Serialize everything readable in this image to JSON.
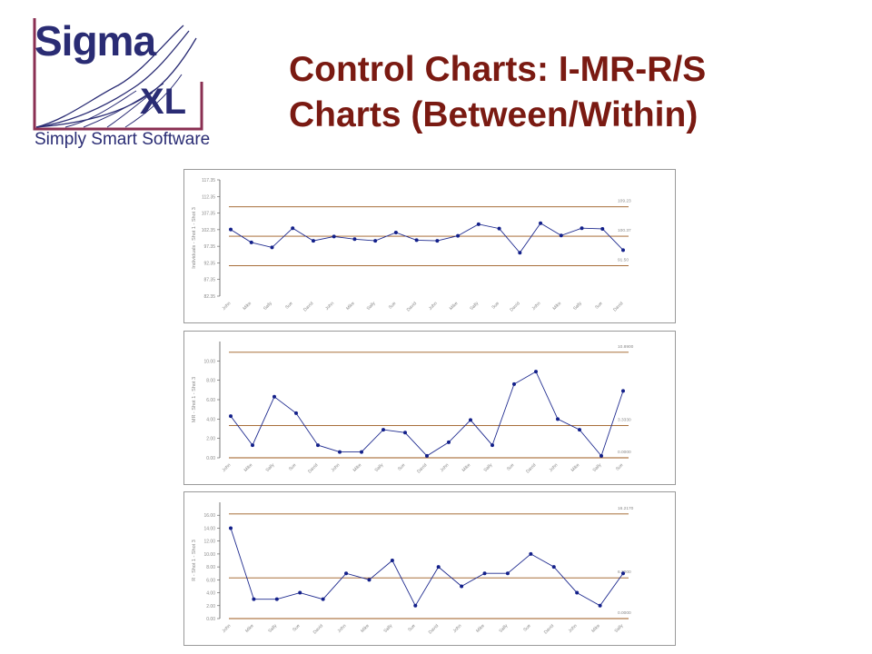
{
  "logo": {
    "sigma": "Sigma",
    "xl": "XL",
    "tagline": "Simply Smart Software",
    "colors": {
      "text": "#2a2c74",
      "frame": "#8a2f52",
      "curves": "#2a2c74"
    }
  },
  "title": {
    "line1": "Control Charts: I-MR-R/S",
    "line2": "Charts (Between/Within)",
    "color": "#7a1a12"
  },
  "colors": {
    "data_line": "#1f2b8f",
    "data_marker": "#13208a",
    "limit_line": "#9c5a1e",
    "label_text": "#888888",
    "panel_border": "#999999"
  },
  "chart_data": [
    {
      "type": "line",
      "title": "",
      "ylabel": "Individuals - Shot 1 - Shot 3",
      "xlabel": "",
      "ylim": [
        82.35,
        117.35
      ],
      "ytick_labels": [
        "117.35",
        "112.35",
        "107.35",
        "102.35",
        "97.35",
        "92.35",
        "87.35",
        "82.35"
      ],
      "categories": [
        "John",
        "Mike",
        "Sally",
        "Sue",
        "David",
        "John",
        "Mike",
        "Sally",
        "Sue",
        "David",
        "John",
        "Mike",
        "Sally",
        "Sue",
        "David",
        "John",
        "Mike",
        "Sally",
        "Sue",
        "David"
      ],
      "series": [
        {
          "values": [
            102.4,
            98.5,
            97.0,
            102.8,
            99.0,
            100.3,
            99.5,
            99.0,
            101.5,
            99.2,
            99.0,
            100.5,
            104.0,
            102.7,
            95.4,
            104.3,
            100.6,
            102.8,
            102.6,
            96.2
          ]
        }
      ],
      "control_limits": [
        {
          "value": 109.23,
          "label": "109.23"
        },
        {
          "value": 100.37,
          "label": "100.37"
        },
        {
          "value": 91.5,
          "label": "91.50"
        }
      ],
      "grid": false
    },
    {
      "type": "line",
      "title": "",
      "ylabel": "MR - Shot 1 - Shot 3",
      "xlabel": "",
      "ylim": [
        0,
        12
      ],
      "ytick_labels": [
        "10.00",
        "8.00",
        "6.00",
        "4.00",
        "2.00",
        "0.00"
      ],
      "categories": [
        "John",
        "Mike",
        "Sally",
        "Sue",
        "David",
        "John",
        "Mike",
        "Sally",
        "Sue",
        "David",
        "John",
        "Mike",
        "Sally",
        "Sue",
        "David",
        "John",
        "Mike",
        "Sally",
        "Sue"
      ],
      "series": [
        {
          "values": [
            4.3,
            1.3,
            6.3,
            4.6,
            1.3,
            0.6,
            0.6,
            2.9,
            2.6,
            0.2,
            1.6,
            3.9,
            1.3,
            7.6,
            8.9,
            4.0,
            2.9,
            0.2,
            6.9
          ]
        }
      ],
      "control_limits": [
        {
          "value": 10.89,
          "label": "10.8900"
        },
        {
          "value": 3.33,
          "label": "3.3330"
        },
        {
          "value": 0,
          "label": "0.0000"
        }
      ],
      "grid": false
    },
    {
      "type": "line",
      "title": "",
      "ylabel": "R - Shot 1 - Shot 3",
      "xlabel": "",
      "ylim": [
        0,
        18
      ],
      "ytick_labels": [
        "16.00",
        "14.00",
        "12.00",
        "10.00",
        "8.00",
        "6.00",
        "4.00",
        "2.00",
        "0.00"
      ],
      "categories": [
        "John",
        "Mike",
        "Sally",
        "Sue",
        "David",
        "John",
        "Mike",
        "Sally",
        "Sue",
        "David",
        "John",
        "Mike",
        "Sally",
        "Sue",
        "David",
        "John",
        "Mike",
        "Sally"
      ],
      "series": [
        {
          "values": [
            14.0,
            3.0,
            3.0,
            4.0,
            3.0,
            7.0,
            6.0,
            9.0,
            2.0,
            8.0,
            5.0,
            7.0,
            7.0,
            10.0,
            8.0,
            4.0,
            2.0,
            7.0
          ]
        }
      ],
      "control_limits": [
        {
          "value": 16.2,
          "label": "16.2170"
        },
        {
          "value": 6.3,
          "label": "6.3000"
        },
        {
          "value": 0,
          "label": "0.0000"
        }
      ],
      "grid": false
    }
  ]
}
